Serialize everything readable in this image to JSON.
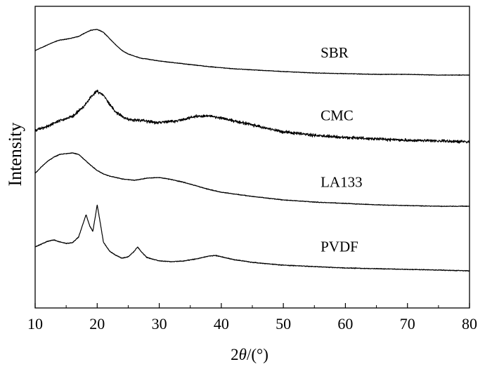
{
  "chart_data": {
    "type": "line",
    "title": "",
    "xlabel_parts": {
      "prefix": "2",
      "italic": "θ",
      "suffix": "/(°)"
    },
    "ylabel": "Intensity",
    "xlim": [
      10,
      80
    ],
    "xticks": [
      {
        "value": 10,
        "label": "10"
      },
      {
        "value": 20,
        "label": "20"
      },
      {
        "value": 30,
        "label": "30"
      },
      {
        "value": 40,
        "label": "40"
      },
      {
        "value": 50,
        "label": "50"
      },
      {
        "value": 60,
        "label": "60"
      },
      {
        "value": 70,
        "label": "70"
      },
      {
        "value": 80,
        "label": "80"
      }
    ],
    "yticks": "none",
    "grid": false,
    "series": [
      {
        "name": "SBR",
        "color": "#000000",
        "noise": 0.6,
        "points": [
          [
            10,
            72
          ],
          [
            11,
            68
          ],
          [
            12,
            64
          ],
          [
            13,
            60
          ],
          [
            14,
            57
          ],
          [
            15,
            56
          ],
          [
            16,
            54
          ],
          [
            17,
            52
          ],
          [
            18,
            47
          ],
          [
            19,
            43
          ],
          [
            20,
            42
          ],
          [
            21,
            46
          ],
          [
            22,
            55
          ],
          [
            23,
            64
          ],
          [
            24,
            72
          ],
          [
            25,
            77
          ],
          [
            26,
            80
          ],
          [
            27,
            83
          ],
          [
            28,
            84
          ],
          [
            30,
            87
          ],
          [
            32,
            89
          ],
          [
            35,
            92
          ],
          [
            38,
            95
          ],
          [
            42,
            98
          ],
          [
            46,
            100
          ],
          [
            50,
            102
          ],
          [
            55,
            104
          ],
          [
            60,
            105
          ],
          [
            65,
            106
          ],
          [
            70,
            106
          ],
          [
            75,
            107
          ],
          [
            80,
            107
          ]
        ]
      },
      {
        "name": "CMC",
        "color": "#000000",
        "noise": 3.2,
        "points": [
          [
            10,
            186
          ],
          [
            12,
            180
          ],
          [
            14,
            172
          ],
          [
            16,
            166
          ],
          [
            17,
            158
          ],
          [
            18,
            150
          ],
          [
            19,
            138
          ],
          [
            20,
            130
          ],
          [
            21,
            136
          ],
          [
            22,
            148
          ],
          [
            23,
            160
          ],
          [
            24,
            166
          ],
          [
            25,
            170
          ],
          [
            27,
            172
          ],
          [
            30,
            175
          ],
          [
            33,
            172
          ],
          [
            36,
            166
          ],
          [
            38,
            165
          ],
          [
            40,
            168
          ],
          [
            42,
            172
          ],
          [
            45,
            178
          ],
          [
            50,
            188
          ],
          [
            55,
            193
          ],
          [
            60,
            196
          ],
          [
            65,
            198
          ],
          [
            70,
            200
          ],
          [
            75,
            201
          ],
          [
            80,
            202
          ]
        ]
      },
      {
        "name": "LA133",
        "color": "#000000",
        "noise": 0.7,
        "points": [
          [
            10,
            247
          ],
          [
            11,
            238
          ],
          [
            12,
            230
          ],
          [
            13,
            224
          ],
          [
            14,
            220
          ],
          [
            15,
            219
          ],
          [
            16,
            218
          ],
          [
            17,
            220
          ],
          [
            18,
            228
          ],
          [
            19,
            236
          ],
          [
            20,
            243
          ],
          [
            21,
            248
          ],
          [
            22,
            251
          ],
          [
            24,
            255
          ],
          [
            26,
            257
          ],
          [
            28,
            254
          ],
          [
            30,
            253
          ],
          [
            32,
            256
          ],
          [
            34,
            260
          ],
          [
            36,
            265
          ],
          [
            38,
            270
          ],
          [
            40,
            274
          ],
          [
            45,
            280
          ],
          [
            50,
            285
          ],
          [
            55,
            288
          ],
          [
            60,
            290
          ],
          [
            65,
            292
          ],
          [
            70,
            293
          ],
          [
            75,
            294
          ],
          [
            80,
            294
          ]
        ]
      },
      {
        "name": "PVDF",
        "color": "#000000",
        "noise": 0.8,
        "points": [
          [
            10,
            352
          ],
          [
            11,
            348
          ],
          [
            12,
            344
          ],
          [
            13,
            342
          ],
          [
            14,
            345
          ],
          [
            15,
            347
          ],
          [
            16,
            346
          ],
          [
            17,
            338
          ],
          [
            17.6,
            322
          ],
          [
            18.2,
            306
          ],
          [
            18.8,
            322
          ],
          [
            19.3,
            330
          ],
          [
            20,
            292
          ],
          [
            20.5,
            318
          ],
          [
            21,
            345
          ],
          [
            22,
            358
          ],
          [
            23,
            364
          ],
          [
            24,
            368
          ],
          [
            25,
            366
          ],
          [
            26,
            358
          ],
          [
            26.5,
            352
          ],
          [
            27,
            358
          ],
          [
            28,
            367
          ],
          [
            30,
            372
          ],
          [
            32,
            373
          ],
          [
            34,
            372
          ],
          [
            36,
            369
          ],
          [
            38,
            365
          ],
          [
            39,
            364
          ],
          [
            40,
            366
          ],
          [
            42,
            370
          ],
          [
            45,
            374
          ],
          [
            50,
            378
          ],
          [
            55,
            380
          ],
          [
            60,
            382
          ],
          [
            65,
            383
          ],
          [
            70,
            384
          ],
          [
            75,
            385
          ],
          [
            80,
            386
          ]
        ]
      }
    ],
    "labels": [
      {
        "series": "SBR",
        "x": 56
      },
      {
        "series": "CMC",
        "x": 56
      },
      {
        "series": "LA133",
        "x": 56
      },
      {
        "series": "PVDF",
        "x": 56
      }
    ]
  }
}
